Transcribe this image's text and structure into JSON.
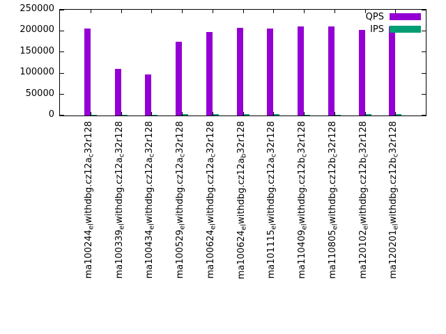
{
  "chart_data": {
    "type": "bar",
    "title": "",
    "xlabel": "",
    "ylabel": "",
    "ylim": [
      0,
      250000
    ],
    "yticks": [
      0,
      50000,
      100000,
      150000,
      200000,
      250000
    ],
    "grid": false,
    "legend_position": "top-right",
    "categories": [
      "ma100244_el_withdbg.cz12a_c32r128",
      "ma100339_el_withdbg.cz12a_c32r128",
      "ma100434_el_withdbg.cz12a_c32r128",
      "ma100529_el_withdbg.cz12a_c32r128",
      "ma100624_el_withdbg.cz12a_c32r128",
      "ma100624_el_withdbg.cz12a_b32r128",
      "ma101115_el_withdbg.cz12a_c32r128",
      "ma110409_el_withdbg.cz12b_c32r128",
      "ma110805_el_withdbg.cz12b_c32r128",
      "ma120102_el_withdbg.cz12b_c32r128",
      "ma120201_el_withdbg.cz12b_c32r128"
    ],
    "categories_rich": [
      [
        {
          "t": "ma100244"
        },
        {
          "t": "el",
          "sub": true
        },
        {
          "t": "withdbg.cz12a"
        },
        {
          "t": "c",
          "sub": true
        },
        {
          "t": "32r128"
        }
      ],
      [
        {
          "t": "ma100339"
        },
        {
          "t": "el",
          "sub": true
        },
        {
          "t": "withdbg.cz12a"
        },
        {
          "t": "c",
          "sub": true
        },
        {
          "t": "32r128"
        }
      ],
      [
        {
          "t": "ma100434"
        },
        {
          "t": "el",
          "sub": true
        },
        {
          "t": "withdbg.cz12a"
        },
        {
          "t": "c",
          "sub": true
        },
        {
          "t": "32r128"
        }
      ],
      [
        {
          "t": "ma100529"
        },
        {
          "t": "el",
          "sub": true
        },
        {
          "t": "withdbg.cz12a"
        },
        {
          "t": "c",
          "sub": true
        },
        {
          "t": "32r128"
        }
      ],
      [
        {
          "t": "ma100624"
        },
        {
          "t": "el",
          "sub": true
        },
        {
          "t": "withdbg.cz12a"
        },
        {
          "t": "c",
          "sub": true
        },
        {
          "t": "32r128"
        }
      ],
      [
        {
          "t": "ma100624"
        },
        {
          "t": "el",
          "sub": true
        },
        {
          "t": "withdbg.cz12a"
        },
        {
          "t": "b",
          "sub": true
        },
        {
          "t": "32r128"
        }
      ],
      [
        {
          "t": "ma101115"
        },
        {
          "t": "el",
          "sub": true
        },
        {
          "t": "withdbg.cz12a"
        },
        {
          "t": "c",
          "sub": true
        },
        {
          "t": "32r128"
        }
      ],
      [
        {
          "t": "ma110409"
        },
        {
          "t": "el",
          "sub": true
        },
        {
          "t": "withdbg.cz12b"
        },
        {
          "t": "c",
          "sub": true
        },
        {
          "t": "32r128"
        }
      ],
      [
        {
          "t": "ma110805"
        },
        {
          "t": "el",
          "sub": true
        },
        {
          "t": "withdbg.cz12b"
        },
        {
          "t": "c",
          "sub": true
        },
        {
          "t": "32r128"
        }
      ],
      [
        {
          "t": "ma120102"
        },
        {
          "t": "el",
          "sub": true
        },
        {
          "t": "withdbg.cz12b"
        },
        {
          "t": "c",
          "sub": true
        },
        {
          "t": "32r128"
        }
      ],
      [
        {
          "t": "ma120201"
        },
        {
          "t": "el",
          "sub": true
        },
        {
          "t": "withdbg.cz12b"
        },
        {
          "t": "c",
          "sub": true
        },
        {
          "t": "32r128"
        }
      ]
    ],
    "series": [
      {
        "name": "QPS",
        "color": "#9400d3",
        "values": [
          205000,
          110000,
          97000,
          175000,
          198000,
          207000,
          205000,
          210000,
          210000,
          202000,
          210000
        ]
      },
      {
        "name": "IPS",
        "color": "#009e73",
        "values": [
          1500,
          1200,
          1800,
          2500,
          2500,
          3000,
          2500,
          2000,
          1500,
          2500,
          2500
        ]
      }
    ]
  }
}
